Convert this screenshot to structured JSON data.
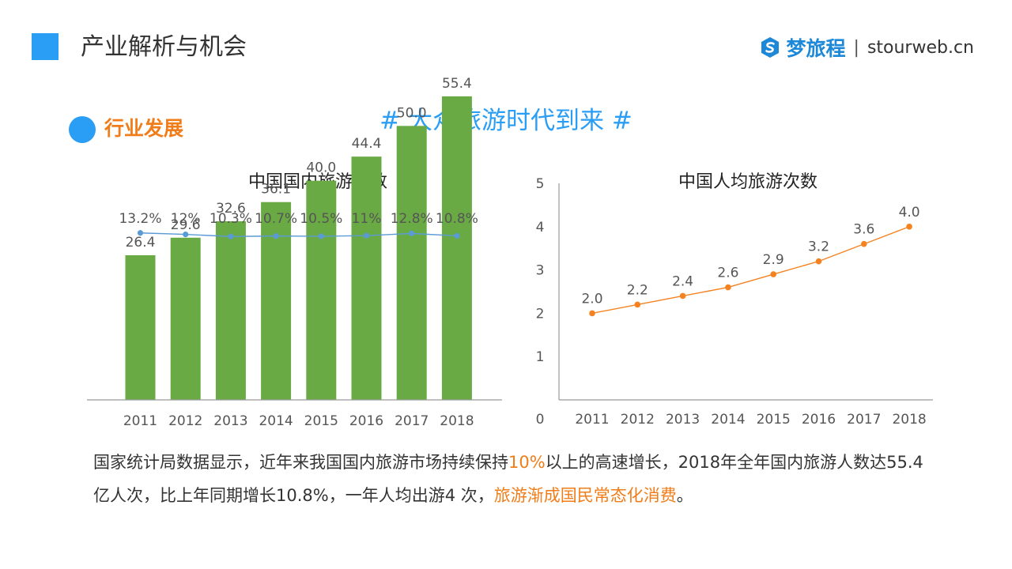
{
  "header": {
    "title": "产业解析与机会",
    "brand_name": "梦旅程",
    "brand_separator": "|",
    "brand_url": "stourweb.cn"
  },
  "section": {
    "label": "行业发展"
  },
  "main_title": "# 大众旅游时代到来 #",
  "colors": {
    "accent_blue": "#2a9df4",
    "bar_green": "#6aaa45",
    "growth_line_blue": "#5b9bd5",
    "line_orange": "#f58220",
    "highlight_orange": "#f07d1a"
  },
  "chart_data": [
    {
      "type": "bar",
      "title": "中国国内旅游人数",
      "categories": [
        "2011",
        "2012",
        "2013",
        "2014",
        "2015",
        "2016",
        "2017",
        "2018"
      ],
      "series": [
        {
          "values": [
            26.4,
            29.6,
            32.6,
            36.1,
            40.0,
            44.4,
            50.0,
            55.4
          ]
        }
      ],
      "data_labels": [
        "26.4",
        "29.6",
        "32.6",
        "36.1",
        "40.0",
        "44.4",
        "50.0",
        "55.4"
      ],
      "growth_line": {
        "type": "line",
        "values": [
          13.2,
          12.0,
          10.3,
          10.7,
          10.5,
          11.0,
          12.8,
          10.8
        ],
        "labels": [
          "13.2%",
          "12%",
          "10.3%",
          "10.7%",
          "10.5%",
          "11%",
          "12.8%",
          "10.8%"
        ]
      },
      "ylim": [
        0,
        60
      ]
    },
    {
      "type": "line",
      "title": "中国人均旅游次数",
      "categories": [
        "2011",
        "2012",
        "2013",
        "2014",
        "2015",
        "2016",
        "2017",
        "2018"
      ],
      "series": [
        {
          "values": [
            2.0,
            2.2,
            2.4,
            2.6,
            2.9,
            3.2,
            3.6,
            4.0
          ]
        }
      ],
      "data_labels": [
        "2.0",
        "2.2",
        "2.4",
        "2.6",
        "2.9",
        "3.2",
        "3.6",
        "4.0"
      ],
      "ylim": [
        0,
        5
      ],
      "yticks": [
        "0",
        "1",
        "2",
        "3",
        "4",
        "5"
      ]
    }
  ],
  "summary": {
    "part1": "国家统计局数据显示，近年来我国国内旅游市场持续保持",
    "highlight1": "10%",
    "part2": "以上的高速增长，2018年全年国内旅游人数达55.4亿人次，比上年同期增长10.8%，一年人均出游4 次，",
    "highlight2": "旅游渐成国民常态化消费",
    "part3": "。"
  }
}
